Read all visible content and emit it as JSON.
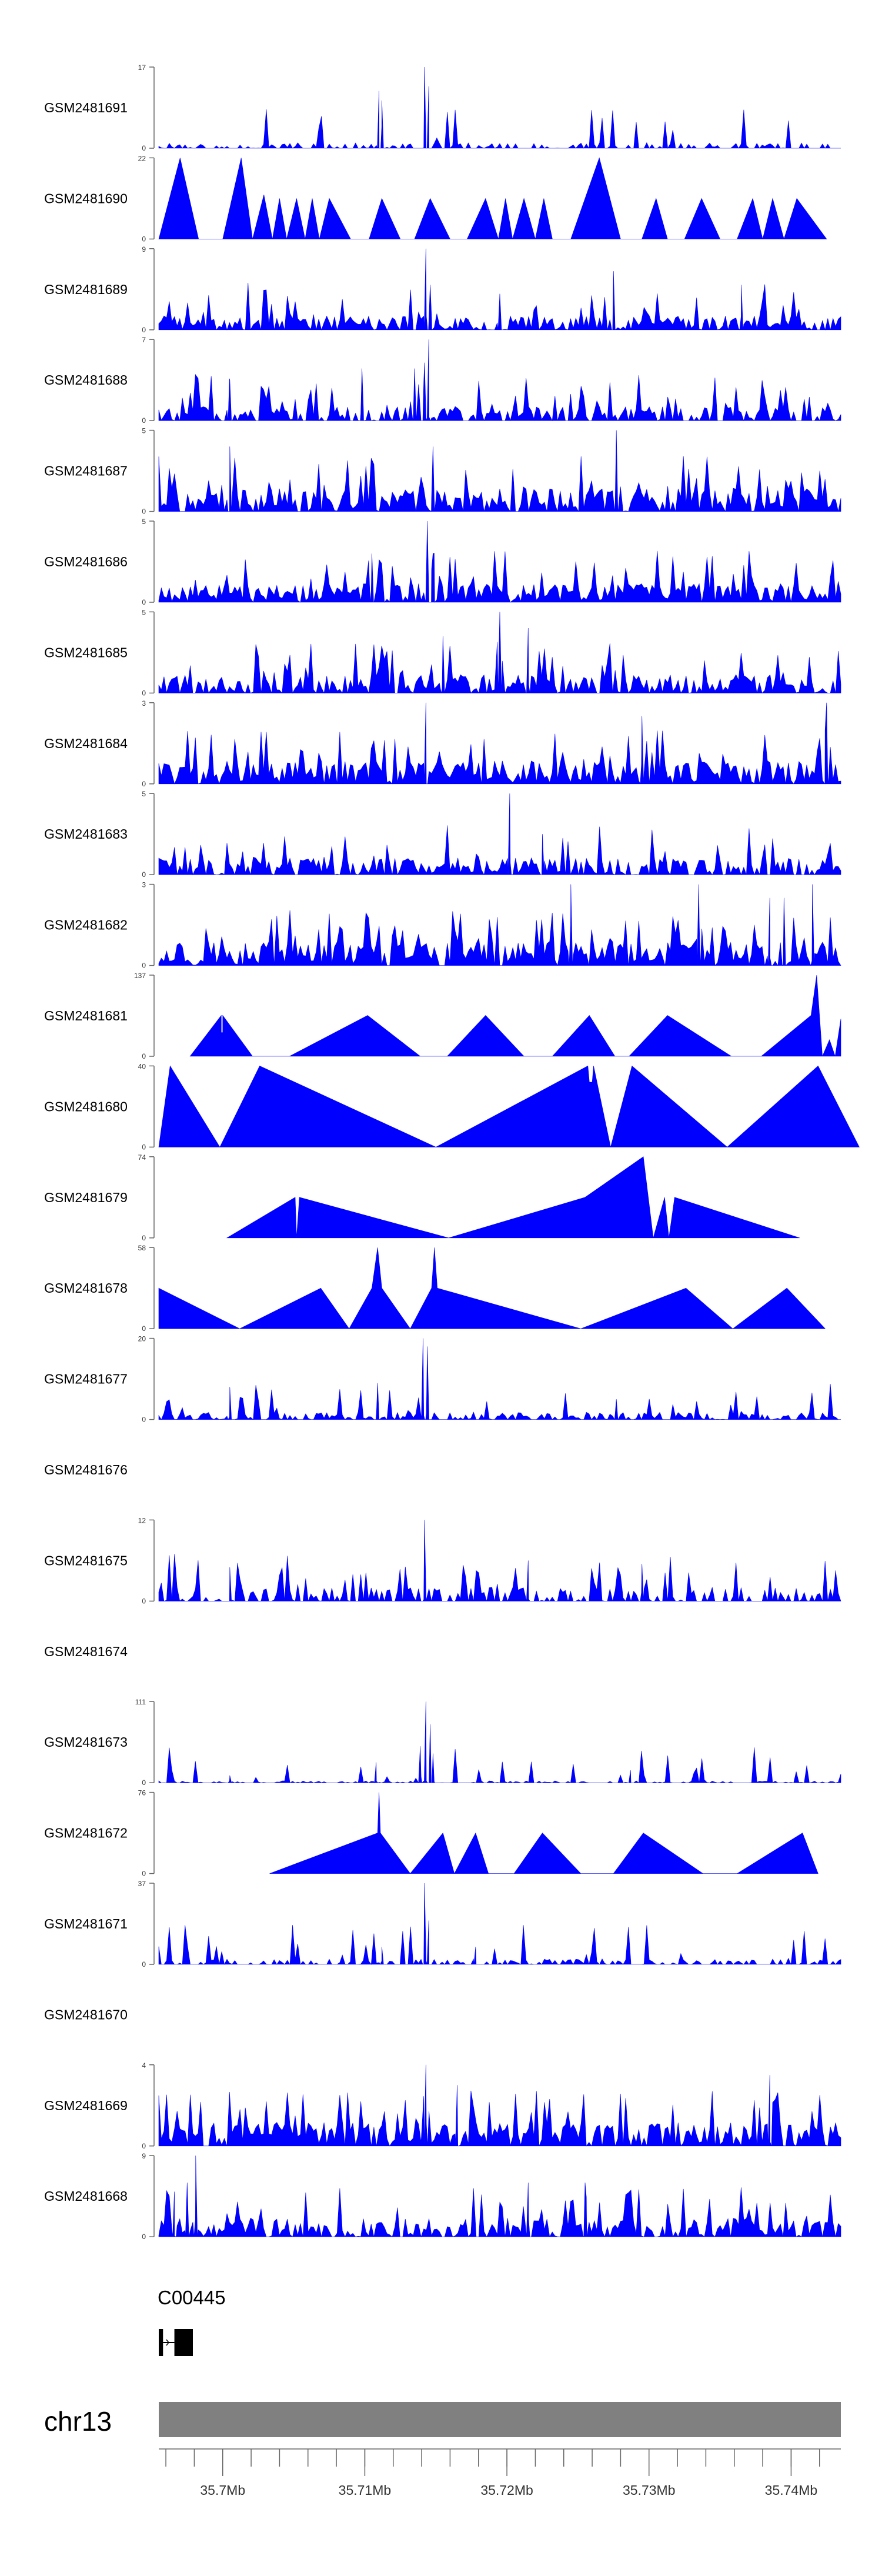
{
  "chart_data": {
    "type": "area",
    "title": "",
    "xlabel": "",
    "ylabel": "",
    "x_range_mb": [
      35.6955,
      35.7435
    ],
    "axis": {
      "ticks": [
        35.7,
        35.71,
        35.72,
        35.73,
        35.74
      ],
      "labels": [
        "35.7Mb",
        "35.71Mb",
        "35.72Mb",
        "35.73Mb",
        "35.74Mb"
      ]
    },
    "chromosome": "chr13",
    "gene": {
      "label": "C00445",
      "exons_mb": [
        [
          35.6955,
          35.6958
        ],
        [
          35.6966,
          35.6979
        ]
      ]
    },
    "tracks": [
      {
        "name": "GSM2481691",
        "ylim": [
          0,
          17
        ],
        "ymax_label": "17",
        "style": "dense",
        "seed": 11,
        "base": 0.06,
        "dens": 0.5,
        "peaks": [
          [
            35.711,
            12
          ],
          [
            35.7112,
            10
          ],
          [
            35.7142,
            17
          ],
          [
            35.7145,
            13
          ]
        ]
      },
      {
        "name": "GSM2481690",
        "ylim": [
          0,
          22
        ],
        "ymax_label": "22",
        "style": "sparse",
        "points": [
          [
            35.6955,
            0
          ],
          [
            35.697,
            22
          ],
          [
            35.6983,
            0
          ],
          [
            35.7,
            0
          ],
          [
            35.7013,
            22
          ],
          [
            35.7021,
            0
          ],
          [
            35.7029,
            12
          ],
          [
            35.7035,
            0
          ],
          [
            35.704,
            11
          ],
          [
            35.7045,
            0
          ],
          [
            35.7052,
            11
          ],
          [
            35.7058,
            0
          ],
          [
            35.7063,
            11
          ],
          [
            35.7068,
            0
          ],
          [
            35.7075,
            11
          ],
          [
            35.709,
            0
          ],
          [
            35.7103,
            0
          ],
          [
            35.7112,
            11
          ],
          [
            35.7125,
            0
          ],
          [
            35.7135,
            0
          ],
          [
            35.7146,
            11
          ],
          [
            35.716,
            0
          ],
          [
            35.7172,
            0
          ],
          [
            35.7185,
            11
          ],
          [
            35.7194,
            0
          ],
          [
            35.7199,
            11
          ],
          [
            35.7204,
            0
          ],
          [
            35.7212,
            11
          ],
          [
            35.722,
            0
          ],
          [
            35.7226,
            11
          ],
          [
            35.7232,
            0
          ],
          [
            35.7245,
            0
          ],
          [
            35.7265,
            22
          ],
          [
            35.728,
            0
          ],
          [
            35.7295,
            0
          ],
          [
            35.7305,
            11
          ],
          [
            35.7313,
            0
          ],
          [
            35.7325,
            0
          ],
          [
            35.7337,
            11
          ],
          [
            35.735,
            0
          ],
          [
            35.7362,
            0
          ],
          [
            35.7373,
            11
          ],
          [
            35.738,
            0
          ],
          [
            35.7387,
            11
          ],
          [
            35.7395,
            0
          ],
          [
            35.7404,
            11
          ],
          [
            35.7425,
            0
          ]
        ]
      },
      {
        "name": "GSM2481689",
        "ylim": [
          0,
          9
        ],
        "ymax_label": "9",
        "style": "dense",
        "seed": 23,
        "base": 0.15,
        "dens": 0.9,
        "peaks": [
          [
            35.7143,
            9
          ],
          [
            35.7146,
            5
          ],
          [
            35.7275,
            6.5
          ],
          [
            35.7195,
            4
          ],
          [
            35.7365,
            5
          ]
        ]
      },
      {
        "name": "GSM2481688",
        "ylim": [
          0,
          7
        ],
        "ymax_label": "7",
        "style": "dense",
        "seed": 37,
        "base": 0.15,
        "dens": 0.75,
        "peaks": [
          [
            35.7145,
            7
          ],
          [
            35.7142,
            5
          ],
          [
            35.7135,
            4.5
          ],
          [
            35.7098,
            4.5
          ],
          [
            35.7005,
            3.5
          ]
        ]
      },
      {
        "name": "GSM2481687",
        "ylim": [
          0,
          5
        ],
        "ymax_label": "5",
        "style": "dense",
        "seed": 41,
        "base": 0.25,
        "dens": 0.9,
        "peaks": [
          [
            35.7277,
            5
          ],
          [
            35.7148,
            4
          ],
          [
            35.7005,
            4
          ]
        ]
      },
      {
        "name": "GSM2481686",
        "ylim": [
          0,
          5
        ],
        "ymax_label": "5",
        "style": "dense",
        "seed": 53,
        "base": 0.2,
        "dens": 0.95,
        "peaks": [
          [
            35.7144,
            5
          ],
          [
            35.7148,
            3
          ],
          [
            35.7105,
            3
          ]
        ]
      },
      {
        "name": "GSM2481685",
        "ylim": [
          0,
          5
        ],
        "ymax_label": "5",
        "style": "dense",
        "seed": 67,
        "base": 0.2,
        "dens": 0.85,
        "peaks": [
          [
            35.7195,
            5
          ],
          [
            35.7215,
            4
          ],
          [
            35.7155,
            3.5
          ]
        ]
      },
      {
        "name": "GSM2481684",
        "ylim": [
          0,
          3
        ],
        "ymax_label": "3",
        "style": "dense",
        "seed": 71,
        "base": 0.25,
        "dens": 0.95,
        "peaks": [
          [
            35.7143,
            3
          ],
          [
            35.7425,
            3
          ],
          [
            35.7295,
            2.5
          ]
        ]
      },
      {
        "name": "GSM2481683",
        "ylim": [
          0,
          5
        ],
        "ymax_label": "5",
        "style": "dense",
        "seed": 83,
        "base": 0.18,
        "dens": 0.8,
        "peaks": [
          [
            35.7202,
            5
          ],
          [
            35.7225,
            2.5
          ]
        ]
      },
      {
        "name": "GSM2481682",
        "ylim": [
          0,
          3
        ],
        "ymax_label": "3",
        "style": "dense",
        "seed": 97,
        "base": 0.25,
        "dens": 0.95,
        "peaks": [
          [
            35.7245,
            3
          ],
          [
            35.7335,
            3
          ],
          [
            35.7415,
            3
          ],
          [
            35.7395,
            2.5
          ],
          [
            35.7385,
            2.5
          ]
        ]
      },
      {
        "name": "GSM2481681",
        "ylim": [
          0,
          137
        ],
        "ymax_label": "137",
        "style": "sparse",
        "points": [
          [
            35.6977,
            0
          ],
          [
            35.6999,
            69
          ],
          [
            35.6999,
            40
          ],
          [
            35.7,
            40
          ],
          [
            35.7,
            69
          ],
          [
            35.7021,
            0
          ],
          [
            35.7047,
            0
          ],
          [
            35.7102,
            69
          ],
          [
            35.7139,
            0
          ],
          [
            35.7158,
            0
          ],
          [
            35.7185,
            69
          ],
          [
            35.7212,
            0
          ],
          [
            35.7232,
            0
          ],
          [
            35.7258,
            69
          ],
          [
            35.7276,
            0
          ],
          [
            35.7286,
            0
          ],
          [
            35.7313,
            69
          ],
          [
            35.7358,
            0
          ],
          [
            35.7379,
            0
          ],
          [
            35.7414,
            69
          ],
          [
            35.7418,
            137
          ],
          [
            35.7422,
            0
          ],
          [
            35.7427,
            28
          ],
          [
            35.7431,
            0
          ],
          [
            35.7435,
            63
          ]
        ]
      },
      {
        "name": "GSM2481680",
        "ylim": [
          0,
          40
        ],
        "ymax_label": "40",
        "style": "sparse",
        "points": [
          [
            35.6955,
            0
          ],
          [
            35.6963,
            40
          ],
          [
            35.6998,
            0
          ],
          [
            35.7026,
            40
          ],
          [
            35.715,
            0
          ],
          [
            35.7257,
            40
          ],
          [
            35.7258,
            32
          ],
          [
            35.726,
            32
          ],
          [
            35.7261,
            40
          ],
          [
            35.7273,
            0
          ],
          [
            35.7288,
            40
          ],
          [
            35.7355,
            0
          ],
          [
            35.7419,
            40
          ],
          [
            35.7448,
            0
          ]
        ]
      },
      {
        "name": "GSM2481679",
        "ylim": [
          0,
          74
        ],
        "ymax_label": "74",
        "style": "sparse",
        "points": [
          [
            35.7003,
            0
          ],
          [
            35.7051,
            37
          ],
          [
            35.7052,
            0
          ],
          [
            35.7054,
            37
          ],
          [
            35.7159,
            0
          ],
          [
            35.7255,
            37
          ],
          [
            35.7296,
            74
          ],
          [
            35.7303,
            0
          ],
          [
            35.7311,
            37
          ],
          [
            35.7314,
            0
          ],
          [
            35.7318,
            37
          ],
          [
            35.7406,
            0
          ]
        ]
      },
      {
        "name": "GSM2481678",
        "ylim": [
          0,
          58
        ],
        "ymax_label": "58",
        "style": "sparse",
        "points": [
          [
            35.6955,
            29
          ],
          [
            35.7012,
            0
          ],
          [
            35.7069,
            29
          ],
          [
            35.7089,
            0
          ],
          [
            35.7105,
            29
          ],
          [
            35.7109,
            58
          ],
          [
            35.7112,
            29
          ],
          [
            35.7132,
            0
          ],
          [
            35.7147,
            29
          ],
          [
            35.7149,
            58
          ],
          [
            35.7151,
            29
          ],
          [
            35.7252,
            0
          ],
          [
            35.7326,
            29
          ],
          [
            35.7359,
            0
          ],
          [
            35.7397,
            29
          ],
          [
            35.7424,
            0
          ]
        ]
      },
      {
        "name": "GSM2481677",
        "ylim": [
          0,
          20
        ],
        "ymax_label": "20",
        "style": "dense",
        "seed": 101,
        "base": 0.08,
        "dens": 0.7,
        "peaks": [
          [
            35.7141,
            20
          ],
          [
            35.7144,
            18
          ],
          [
            35.7109,
            9
          ],
          [
            35.7005,
            8
          ],
          [
            35.7277,
            5
          ]
        ]
      },
      {
        "name": "GSM2481676",
        "style": "empty"
      },
      {
        "name": "GSM2481675",
        "ylim": [
          0,
          12
        ],
        "ymax_label": "12",
        "style": "dense",
        "seed": 113,
        "base": 0.15,
        "dens": 0.6,
        "peaks": [
          [
            35.7142,
            12
          ],
          [
            35.7215,
            6
          ],
          [
            35.7295,
            5.5
          ],
          [
            35.7005,
            5
          ]
        ]
      },
      {
        "name": "GSM2481674",
        "style": "empty"
      },
      {
        "name": "GSM2481673",
        "ylim": [
          0,
          111
        ],
        "ymax_label": "111",
        "style": "dense",
        "seed": 127,
        "base": 0.02,
        "dens": 0.5,
        "peaks": [
          [
            35.7143,
            111
          ],
          [
            35.7146,
            80
          ],
          [
            35.7139,
            50
          ],
          [
            35.7148,
            40
          ],
          [
            35.7108,
            28
          ],
          [
            35.7287,
            17
          ],
          [
            35.7005,
            10
          ]
        ]
      },
      {
        "name": "GSM2481672",
        "ylim": [
          0,
          76
        ],
        "ymax_label": "76",
        "style": "sparse",
        "points": [
          [
            35.7033,
            0
          ],
          [
            35.7109,
            38
          ],
          [
            35.711,
            76
          ],
          [
            35.7111,
            38
          ],
          [
            35.7132,
            0
          ],
          [
            35.7155,
            38
          ],
          [
            35.7163,
            0
          ],
          [
            35.7178,
            38
          ],
          [
            35.7187,
            0
          ],
          [
            35.7205,
            0
          ],
          [
            35.7225,
            38
          ],
          [
            35.7252,
            0
          ],
          [
            35.7275,
            0
          ],
          [
            35.7296,
            38
          ],
          [
            35.7338,
            0
          ],
          [
            35.7362,
            0
          ],
          [
            35.7408,
            38
          ],
          [
            35.7419,
            0
          ]
        ]
      },
      {
        "name": "GSM2481671",
        "ylim": [
          0,
          37
        ],
        "ymax_label": "37",
        "style": "dense",
        "seed": 139,
        "base": 0.06,
        "dens": 0.55,
        "peaks": [
          [
            35.7142,
            37
          ],
          [
            35.7145,
            20
          ],
          [
            35.7112,
            8
          ],
          [
            35.7178,
            8
          ]
        ]
      },
      {
        "name": "GSM2481670",
        "style": "empty"
      },
      {
        "name": "GSM2481669",
        "ylim": [
          0,
          4
        ],
        "ymax_label": "4",
        "style": "dense",
        "seed": 151,
        "base": 0.25,
        "dens": 0.95,
        "peaks": [
          [
            35.7143,
            4
          ],
          [
            35.7385,
            3.5
          ],
          [
            35.7165,
            3
          ]
        ]
      },
      {
        "name": "GSM2481668",
        "ylim": [
          0,
          9
        ],
        "ymax_label": "9",
        "style": "dense",
        "seed": 163,
        "base": 0.2,
        "dens": 0.85,
        "peaks": [
          [
            35.6981,
            9
          ],
          [
            35.6975,
            6
          ],
          [
            35.6966,
            5
          ],
          [
            35.7215,
            6
          ],
          [
            35.7255,
            6
          ]
        ]
      }
    ],
    "colors": {
      "signal": "#0000FF",
      "text": "#000000",
      "axis": "#666666",
      "ideogram": "#808080",
      "gene": "#000000"
    }
  }
}
